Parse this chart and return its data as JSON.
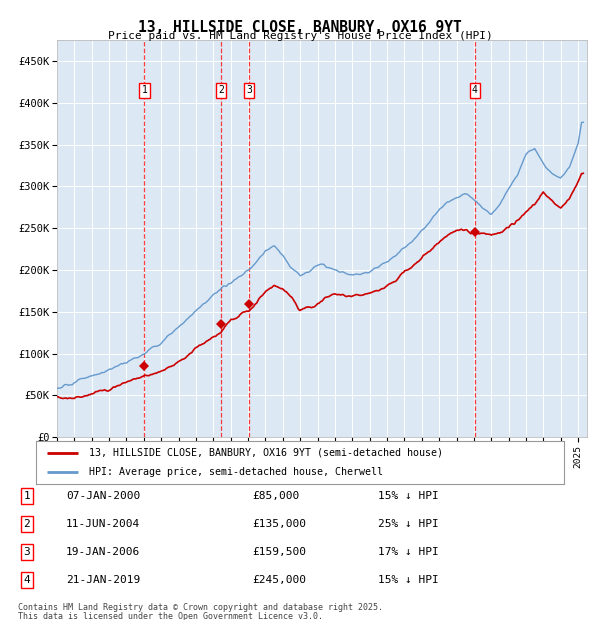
{
  "title": "13, HILLSIDE CLOSE, BANBURY, OX16 9YT",
  "subtitle": "Price paid vs. HM Land Registry's House Price Index (HPI)",
  "legend_line1": "13, HILLSIDE CLOSE, BANBURY, OX16 9YT (semi-detached house)",
  "legend_line2": "HPI: Average price, semi-detached house, Cherwell",
  "footer1": "Contains HM Land Registry data © Crown copyright and database right 2025.",
  "footer2": "This data is licensed under the Open Government Licence v3.0.",
  "background_color": "#dce9f5",
  "outer_bg_color": "#ffffff",
  "red_line_color": "#cc0000",
  "blue_line_color": "#6699cc",
  "ylim": [
    0,
    475000
  ],
  "yticks": [
    0,
    50000,
    100000,
    150000,
    200000,
    250000,
    300000,
    350000,
    400000,
    450000
  ],
  "ytick_labels": [
    "£0",
    "£50K",
    "£100K",
    "£150K",
    "£200K",
    "£250K",
    "£300K",
    "£350K",
    "£400K",
    "£450K"
  ],
  "xlim_start": 1995.0,
  "xlim_end": 2025.5,
  "transactions": [
    {
      "num": 1,
      "date": "07-JAN-2000",
      "year": 2000.03,
      "price": 85000,
      "pct": "15%",
      "dir": "↓"
    },
    {
      "num": 2,
      "date": "11-JUN-2004",
      "year": 2004.44,
      "price": 135000,
      "pct": "25%",
      "dir": "↓"
    },
    {
      "num": 3,
      "date": "19-JAN-2006",
      "year": 2006.05,
      "price": 159500,
      "pct": "17%",
      "dir": "↓"
    },
    {
      "num": 4,
      "date": "21-JAN-2019",
      "year": 2019.06,
      "price": 245000,
      "pct": "15%",
      "dir": "↓"
    }
  ],
  "xtick_years": [
    1995,
    1996,
    1997,
    1998,
    1999,
    2000,
    2001,
    2002,
    2003,
    2004,
    2005,
    2006,
    2007,
    2008,
    2009,
    2010,
    2011,
    2012,
    2013,
    2014,
    2015,
    2016,
    2017,
    2018,
    2019,
    2020,
    2021,
    2022,
    2023,
    2024,
    2025
  ],
  "hpi_anchors_x": [
    1995.0,
    1996.0,
    1997.0,
    1998.0,
    1999.0,
    2000.0,
    2001.0,
    2002.0,
    2003.0,
    2004.0,
    2004.5,
    2005.0,
    2006.0,
    2007.0,
    2007.5,
    2008.0,
    2008.5,
    2009.0,
    2009.5,
    2010.0,
    2011.0,
    2012.0,
    2013.0,
    2014.0,
    2015.0,
    2016.0,
    2017.0,
    2017.5,
    2018.0,
    2018.5,
    2019.0,
    2019.5,
    2020.0,
    2020.5,
    2021.0,
    2021.5,
    2022.0,
    2022.5,
    2023.0,
    2023.5,
    2024.0,
    2024.5,
    2025.0,
    2025.2
  ],
  "hpi_anchors_y": [
    58000,
    65000,
    72000,
    78000,
    88000,
    100000,
    115000,
    135000,
    158000,
    178000,
    185000,
    190000,
    205000,
    225000,
    230000,
    220000,
    205000,
    195000,
    198000,
    205000,
    205000,
    200000,
    205000,
    218000,
    238000,
    260000,
    285000,
    293000,
    298000,
    302000,
    296000,
    285000,
    278000,
    290000,
    308000,
    325000,
    348000,
    356000,
    338000,
    325000,
    318000,
    330000,
    355000,
    380000
  ],
  "red_anchors_x": [
    1995.0,
    1996.0,
    1997.0,
    1998.0,
    1999.0,
    2000.03,
    2001.0,
    2002.0,
    2003.0,
    2004.0,
    2004.44,
    2005.0,
    2006.05,
    2006.5,
    2007.0,
    2007.5,
    2008.0,
    2008.5,
    2009.0,
    2009.5,
    2010.0,
    2010.5,
    2011.0,
    2011.5,
    2012.0,
    2012.5,
    2013.0,
    2013.5,
    2014.0,
    2014.5,
    2015.0,
    2015.5,
    2016.0,
    2016.5,
    2017.0,
    2017.5,
    2018.0,
    2018.5,
    2019.06,
    2019.5,
    2020.0,
    2020.5,
    2021.0,
    2021.5,
    2022.0,
    2022.5,
    2023.0,
    2023.5,
    2024.0,
    2024.5,
    2025.0,
    2025.2
  ],
  "red_anchors_y": [
    48000,
    50000,
    55000,
    62000,
    72000,
    85000,
    92000,
    102000,
    118000,
    128000,
    135000,
    148000,
    159500,
    168000,
    180000,
    185000,
    178000,
    168000,
    152000,
    158000,
    162000,
    168000,
    170000,
    168000,
    168000,
    170000,
    172000,
    175000,
    182000,
    188000,
    198000,
    205000,
    215000,
    222000,
    232000,
    238000,
    244000,
    248000,
    245000,
    242000,
    238000,
    242000,
    250000,
    258000,
    268000,
    278000,
    295000,
    285000,
    278000,
    288000,
    310000,
    320000
  ]
}
